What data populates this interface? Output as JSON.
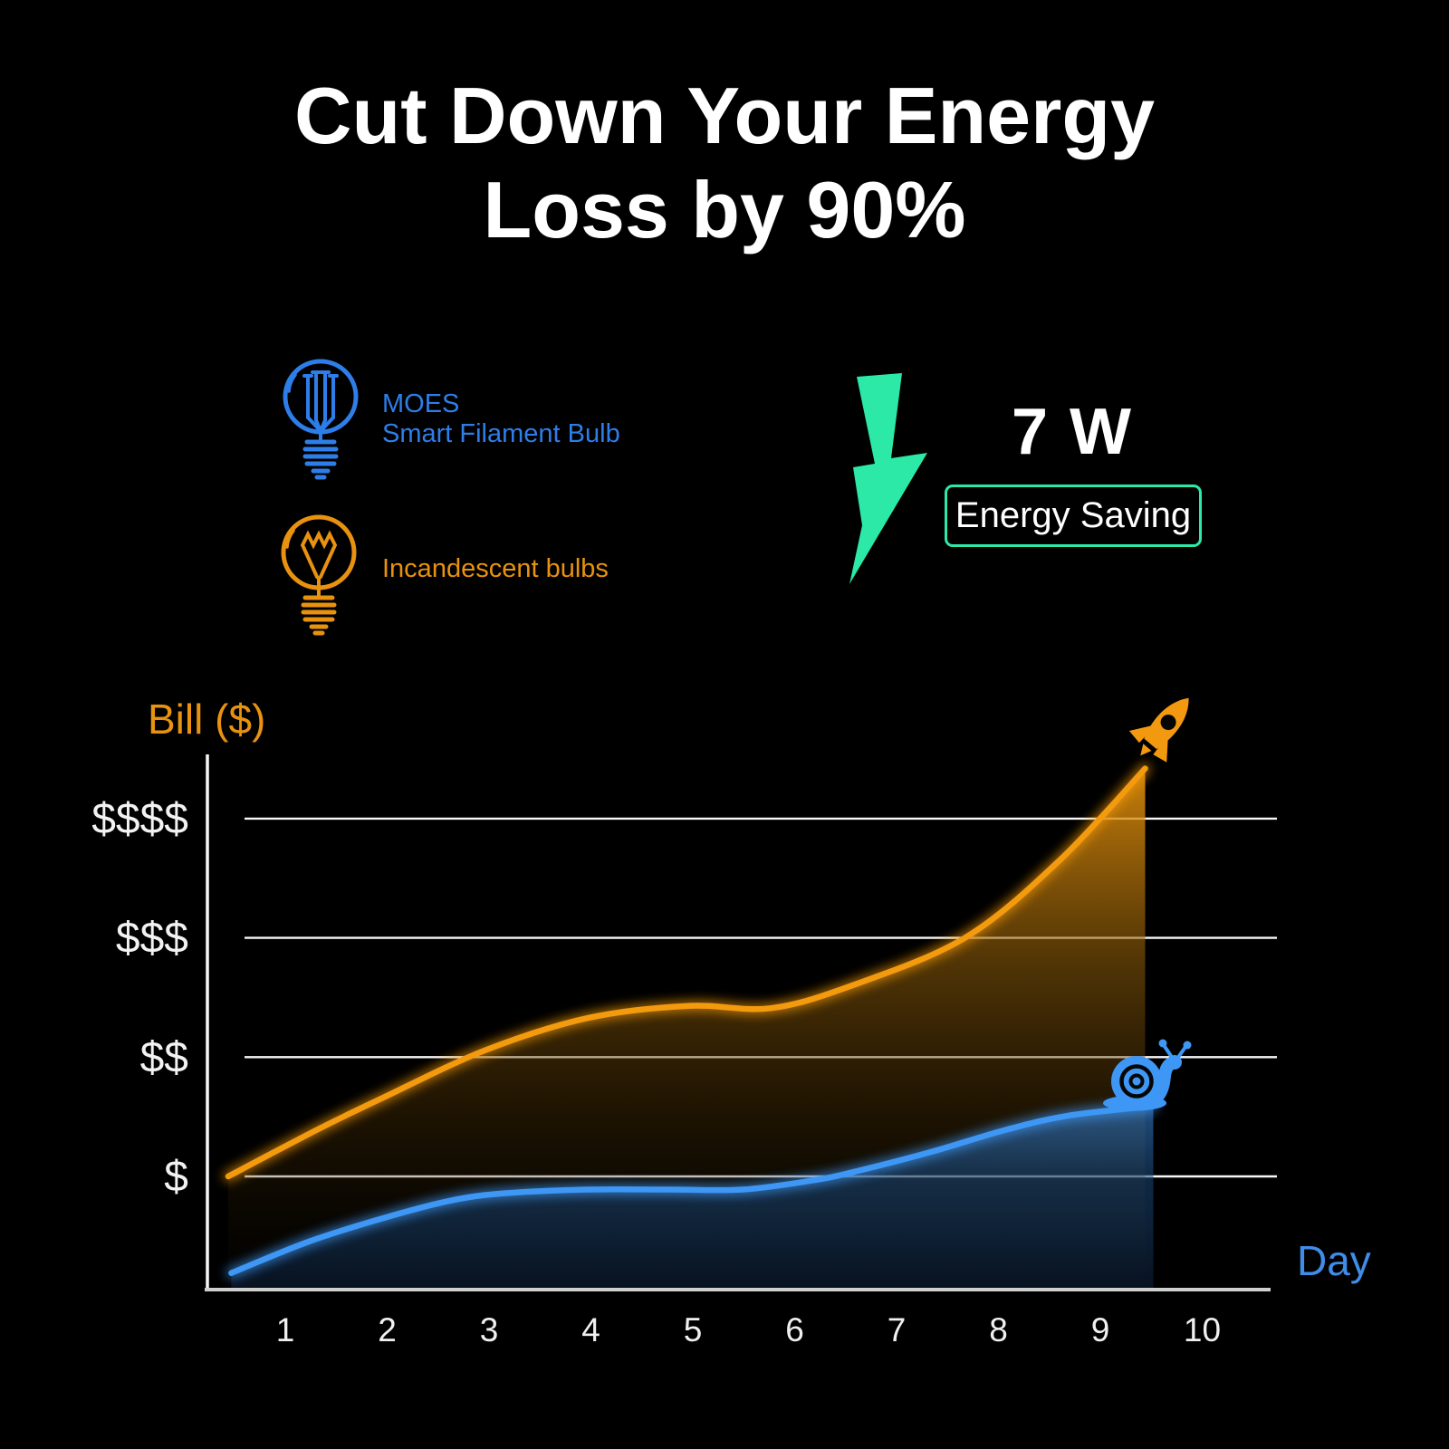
{
  "header": {
    "title_line1": "Cut Down Your Energy",
    "title_line2": "Loss by 90%"
  },
  "legend": {
    "smart": {
      "brand": "MOES",
      "product": "Smart Filament Bulb",
      "color": "#2E7EE9",
      "icon": "filament-bulb-icon"
    },
    "incandescent": {
      "label": "Incandescent bulbs",
      "color": "#E8920F",
      "icon": "incandescent-bulb-icon"
    }
  },
  "energy": {
    "watts": "7 W",
    "badge": "Energy Saving",
    "accent": "#2CE9A7",
    "icon": "lightning-bolt-icon"
  },
  "chart_data": {
    "type": "area",
    "title": "",
    "xlabel": "Day",
    "ylabel": "Bill ($)",
    "x_ticks": [
      1,
      2,
      3,
      4,
      5,
      6,
      7,
      8,
      9,
      10
    ],
    "y_ticks": [
      "$",
      "$$",
      "$$$",
      "$$$$"
    ],
    "xlim": [
      0.3,
      10.6
    ],
    "ylim_units": [
      0,
      4.6
    ],
    "grid": true,
    "legend_position": "top-left",
    "series": [
      {
        "name": "Incandescent bulbs",
        "color": "#F49A0D",
        "end_icon": "rocket",
        "points": [
          [
            0.44,
            1.0
          ],
          [
            1.31,
            1.39
          ],
          [
            1.96,
            1.66
          ],
          [
            2.97,
            2.06
          ],
          [
            3.98,
            2.33
          ],
          [
            4.96,
            2.43
          ],
          [
            5.76,
            2.41
          ],
          [
            6.56,
            2.6
          ],
          [
            7.67,
            3.0
          ],
          [
            8.6,
            3.65
          ],
          [
            9.44,
            4.42
          ]
        ]
      },
      {
        "name": "MOES Smart Filament Bulb",
        "color": "#3E97F5",
        "end_icon": "snail",
        "points": [
          [
            0.47,
            0.19
          ],
          [
            1.22,
            0.45
          ],
          [
            1.96,
            0.65
          ],
          [
            2.64,
            0.8
          ],
          [
            3.18,
            0.86
          ],
          [
            3.98,
            0.89
          ],
          [
            4.78,
            0.89
          ],
          [
            5.49,
            0.89
          ],
          [
            6.2,
            0.97
          ],
          [
            6.64,
            1.05
          ],
          [
            7.36,
            1.21
          ],
          [
            8.07,
            1.39
          ],
          [
            8.69,
            1.51
          ],
          [
            9.52,
            1.59
          ]
        ]
      }
    ]
  }
}
